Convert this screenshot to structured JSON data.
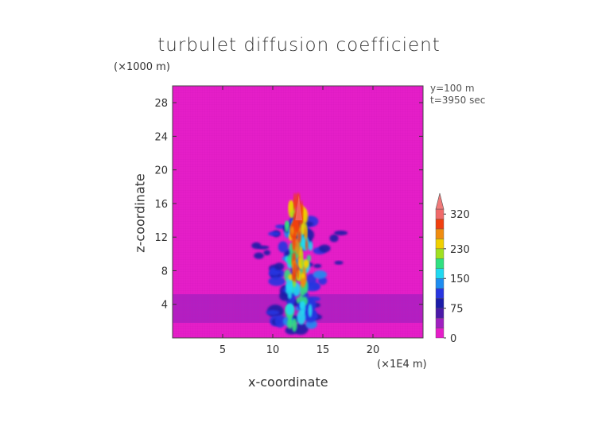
{
  "chart_data": {
    "type": "heatmap",
    "title": "turbulet diffusion coefficient",
    "xlabel": "x-coordinate",
    "ylabel": "z-coordinate",
    "x_unit": "(×1E4 m)",
    "y_unit": "(×1000 m)",
    "annotations": [
      "y=100 m",
      "t=3950 sec"
    ],
    "xlim": [
      0,
      25
    ],
    "ylim": [
      0,
      30
    ],
    "x_ticks": [
      5,
      10,
      15,
      20
    ],
    "y_ticks": [
      4,
      8,
      12,
      16,
      20,
      24,
      28
    ],
    "colorbar": {
      "levels": [
        0,
        25,
        50,
        75,
        100,
        125,
        150,
        175,
        200,
        230,
        260,
        290,
        320
      ],
      "labels": [
        "0",
        "75",
        "150",
        "230",
        "320"
      ],
      "label_values": [
        0,
        75,
        150,
        230,
        320
      ],
      "colors": [
        "#e51ec8",
        "#a020c0",
        "#4b1aa8",
        "#1c1ca8",
        "#2836e0",
        "#1e8cf0",
        "#20d8f0",
        "#30e080",
        "#a0e020",
        "#f0d000",
        "#f08c10",
        "#f04010",
        "#f06a6a"
      ],
      "extend_top_color": "#f07a7a"
    },
    "features": {
      "background_value": 0,
      "boundary_layer": {
        "z_range": [
          1.8,
          5.2
        ],
        "value": 25
      },
      "plume": {
        "x_center": 12.6,
        "z_top": 17,
        "max_value": 320
      }
    }
  }
}
